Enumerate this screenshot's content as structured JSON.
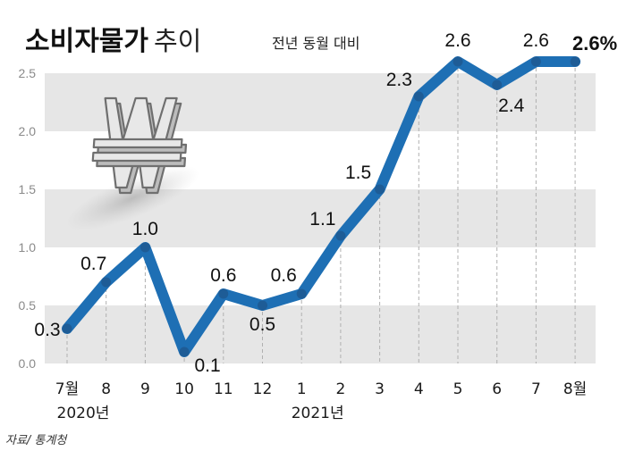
{
  "title": "소비자물가",
  "title_suffix": "추이",
  "subtitle": "전년 동월 대비",
  "source": "자료/ 통계청",
  "colors": {
    "line": "#1e6fb4",
    "marker": "#1e5c96",
    "band": "#e6e6e6",
    "grid": "#b0b0b0"
  },
  "chart_data": {
    "type": "line",
    "title": "소비자물가 추이",
    "subtitle": "전년 동월 대비",
    "categories": [
      "7월",
      "8",
      "9",
      "10",
      "11",
      "12",
      "1",
      "2",
      "3",
      "4",
      "5",
      "6",
      "7",
      "8월"
    ],
    "year_labels": [
      {
        "index": 0,
        "text": "2020년"
      },
      {
        "index": 6,
        "text": "2021년"
      }
    ],
    "values": [
      0.3,
      0.7,
      1.0,
      0.1,
      0.6,
      0.5,
      0.6,
      1.1,
      1.5,
      2.3,
      2.6,
      2.4,
      2.6,
      2.6
    ],
    "value_labels": [
      "0.3",
      "0.7",
      "1.0",
      "0.1",
      "0.6",
      "0.5",
      "0.6",
      "1.1",
      "1.5",
      "2.3",
      "2.6",
      "2.4",
      "2.6",
      "2.6%"
    ],
    "ylim": [
      0,
      2.5
    ],
    "yticks": [
      "0.0",
      "0.5",
      "1.0",
      "1.5",
      "2.0",
      "2.5"
    ],
    "grid": "alternating horizontal bands",
    "icon": "won-sign-icon"
  }
}
